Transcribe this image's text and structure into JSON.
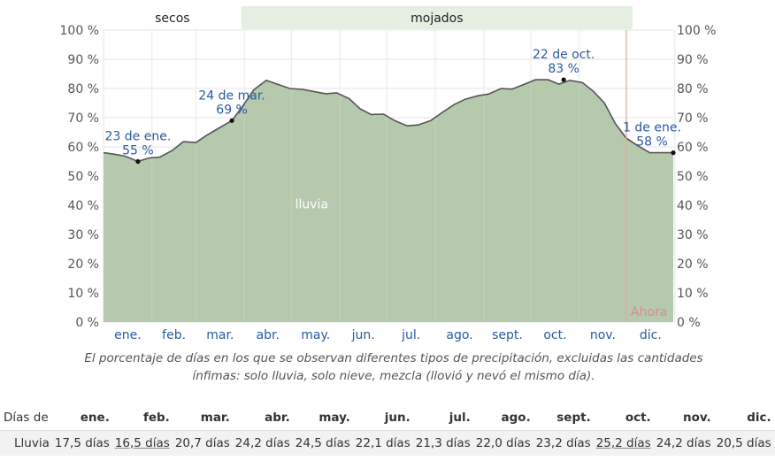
{
  "chart_data": {
    "type": "area",
    "ylim": [
      0,
      100
    ],
    "y_ticks": [
      "0 %",
      "10 %",
      "20 %",
      "30 %",
      "40 %",
      "50 %",
      "60 %",
      "70 %",
      "80 %",
      "90 %",
      "100 %"
    ],
    "months": [
      "ene.",
      "feb.",
      "mar.",
      "abr.",
      "may.",
      "jun.",
      "jul.",
      "ago.",
      "sept.",
      "oct.",
      "nov.",
      "dic."
    ],
    "seasons": [
      {
        "label": "secos",
        "start_day": 0,
        "end_day": 88
      },
      {
        "label": "mojados",
        "start_day": 88,
        "end_day": 338
      }
    ],
    "series": [
      {
        "name": "lluvia",
        "color": "#b5c9ad",
        "x": [
          1,
          8,
          15,
          23,
          30,
          37,
          45,
          52,
          60,
          67,
          75,
          83,
          90,
          97,
          105,
          112,
          120,
          128,
          135,
          143,
          150,
          158,
          165,
          172,
          180,
          187,
          195,
          202,
          210,
          218,
          225,
          232,
          240,
          247,
          255,
          262,
          270,
          277,
          285,
          292,
          299,
          307,
          314,
          321,
          328,
          335,
          342,
          350,
          358,
          365
        ],
        "y": [
          58,
          57.5,
          56.8,
          55,
          56.2,
          56.5,
          58.8,
          61.8,
          61.5,
          64,
          66.5,
          69,
          74,
          79.5,
          82.8,
          81.5,
          80,
          79.7,
          79,
          78.2,
          78.5,
          76.5,
          73,
          71.1,
          71.2,
          69,
          67.2,
          67.5,
          69,
          72,
          74.5,
          76.3,
          77.5,
          78.1,
          80,
          79.8,
          81.5,
          83,
          83,
          81.5,
          82.8,
          82,
          79,
          75,
          68,
          63,
          60.5,
          58,
          58,
          58
        ]
      }
    ],
    "annotations": [
      {
        "day": 23,
        "value": 55,
        "date": "23 de ene.",
        "pct": "55 %"
      },
      {
        "day": 83,
        "value": 69,
        "date": "24 de mar.",
        "pct": "69 %"
      },
      {
        "day": 295,
        "value": 83,
        "date": "22 de oct.",
        "pct": "83 %"
      },
      {
        "day": 365,
        "value": 58,
        "date": "1 de ene.",
        "pct": "58 %"
      }
    ],
    "series_label": "lluvia",
    "now_label": "Ahora",
    "now_day": 335,
    "grid": true
  },
  "caption": {
    "line1": "El porcentaje de días en los que se observan diferentes tipos de precipitación, excluidas las cantidades",
    "line2": "ínfimas: solo lluvia, solo nieve, mezcla (llovió y nevó el mismo día)."
  },
  "table": {
    "header_label": "Días de",
    "months": [
      "ene.",
      "feb.",
      "mar.",
      "abr.",
      "may.",
      "jun.",
      "jul.",
      "ago.",
      "sept.",
      "oct.",
      "nov.",
      "dic."
    ],
    "rows": [
      {
        "label": "Lluvia",
        "values": [
          "17,5 días",
          "16,5 días",
          "20,7 días",
          "24,2 días",
          "24,5 días",
          "22,1 días",
          "21,3 días",
          "22,0 días",
          "23,2 días",
          "25,2 días",
          "24,2 días",
          "20,5 días"
        ],
        "underlined": [
          false,
          true,
          false,
          false,
          false,
          false,
          false,
          false,
          false,
          true,
          false,
          false
        ]
      }
    ]
  }
}
